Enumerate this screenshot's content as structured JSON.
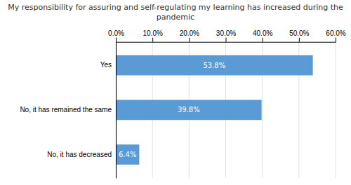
{
  "chart_data": {
    "type": "bar",
    "orientation": "horizontal",
    "title": "My responsibility for assuring and self-regulating my learning has increased during the\npandemic",
    "categories": [
      "No, it has decreased",
      "No, it has remained the same",
      "Yes"
    ],
    "values": [
      6.4,
      39.8,
      53.8
    ],
    "value_labels": [
      "6.4%",
      "39.8%",
      "53.8%"
    ],
    "data_labels": true,
    "color": "#5b9bd5",
    "xlim": [
      0,
      60
    ],
    "xticks": [
      {
        "value": 0,
        "label": "0.0%"
      },
      {
        "value": 10,
        "label": "10.0%"
      },
      {
        "value": 20,
        "label": "20.0%"
      },
      {
        "value": 30,
        "label": "30.0%"
      },
      {
        "value": 40,
        "label": "40.0%"
      },
      {
        "value": 50,
        "label": "50.0%"
      },
      {
        "value": 60,
        "label": "60.0%"
      }
    ],
    "grid": true
  }
}
